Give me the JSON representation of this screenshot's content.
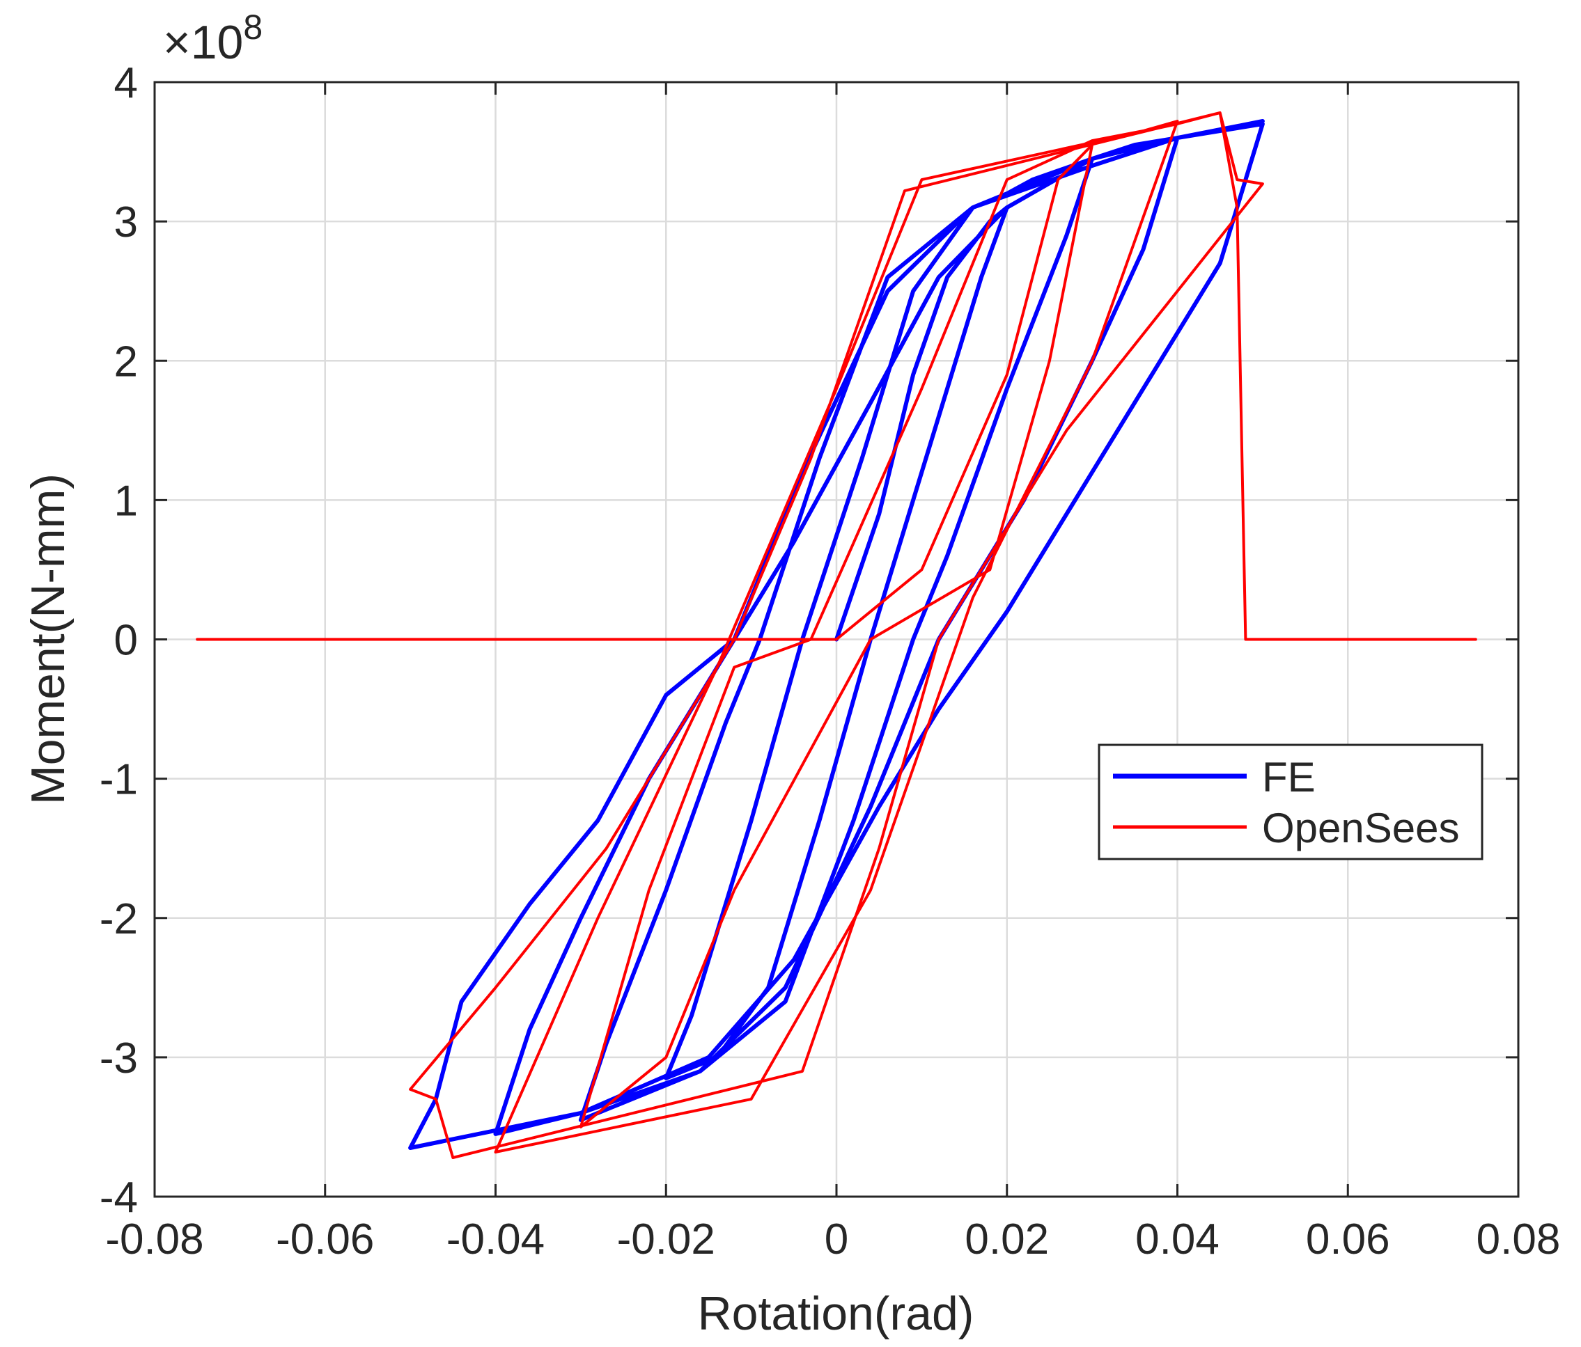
{
  "chart_data": {
    "type": "line",
    "xlabel": "Rotation(rad)",
    "ylabel": "Moment(N-mm)",
    "y_multiplier_label": "×10",
    "y_multiplier_exponent": "8",
    "xlim": [
      -0.08,
      0.08
    ],
    "ylim": [
      -4,
      4
    ],
    "grid": true,
    "legend_position": "right",
    "x_ticks": [
      -0.08,
      -0.06,
      -0.04,
      -0.02,
      0,
      0.02,
      0.04,
      0.06,
      0.08
    ],
    "x_tick_labels": [
      "-0.08",
      "-0.06",
      "-0.04",
      "-0.02",
      "0",
      "0.02",
      "0.04",
      "0.06",
      "0.08"
    ],
    "y_ticks": [
      -4,
      -3,
      -2,
      -1,
      0,
      1,
      2,
      3,
      4
    ],
    "y_tick_labels": [
      "-4",
      "-3",
      "-2",
      "-1",
      "0",
      "1",
      "2",
      "3",
      "4"
    ],
    "series": [
      {
        "name": "FE",
        "color": "#0000ff",
        "points": [
          [
            0,
            0
          ],
          [
            0.005,
            0.9
          ],
          [
            0.009,
            1.9
          ],
          [
            0.013,
            2.6
          ],
          [
            0.018,
            3.0
          ],
          [
            0.02,
            3.1
          ],
          [
            0.017,
            2.6
          ],
          [
            0.01,
            1.2
          ],
          [
            0.004,
            0.0
          ],
          [
            -0.002,
            -1.3
          ],
          [
            -0.008,
            -2.5
          ],
          [
            -0.014,
            -3.0
          ],
          [
            -0.02,
            -3.15
          ],
          [
            -0.017,
            -2.7
          ],
          [
            -0.01,
            -1.3
          ],
          [
            -0.004,
            0.0
          ],
          [
            0.003,
            1.3
          ],
          [
            0.009,
            2.5
          ],
          [
            0.016,
            3.1
          ],
          [
            0.02,
            3.2
          ],
          [
            0.023,
            3.3
          ],
          [
            0.03,
            3.45
          ],
          [
            0.027,
            2.9
          ],
          [
            0.02,
            1.8
          ],
          [
            0.013,
            0.6
          ],
          [
            0.009,
            0.0
          ],
          [
            0.002,
            -1.3
          ],
          [
            -0.006,
            -2.6
          ],
          [
            -0.016,
            -3.1
          ],
          [
            -0.026,
            -3.35
          ],
          [
            -0.03,
            -3.45
          ],
          [
            -0.027,
            -2.9
          ],
          [
            -0.02,
            -1.8
          ],
          [
            -0.013,
            -0.6
          ],
          [
            -0.009,
            0.0
          ],
          [
            -0.002,
            1.3
          ],
          [
            0.006,
            2.6
          ],
          [
            0.016,
            3.1
          ],
          [
            0.026,
            3.35
          ],
          [
            0.03,
            3.45
          ],
          [
            0.035,
            3.55
          ],
          [
            0.04,
            3.6
          ],
          [
            0.036,
            2.8
          ],
          [
            0.03,
            2.0
          ],
          [
            0.022,
            1.0
          ],
          [
            0.012,
            0.0
          ],
          [
            0.004,
            -1.2
          ],
          [
            -0.006,
            -2.5
          ],
          [
            -0.016,
            -3.1
          ],
          [
            -0.03,
            -3.4
          ],
          [
            -0.04,
            -3.55
          ],
          [
            -0.036,
            -2.8
          ],
          [
            -0.03,
            -2.0
          ],
          [
            -0.022,
            -1.0
          ],
          [
            -0.012,
            0.0
          ],
          [
            -0.004,
            1.2
          ],
          [
            0.006,
            2.5
          ],
          [
            0.016,
            3.1
          ],
          [
            0.03,
            3.4
          ],
          [
            0.04,
            3.6
          ],
          [
            0.05,
            3.7
          ],
          [
            0.045,
            2.7
          ],
          [
            0.038,
            2.0
          ],
          [
            0.03,
            1.2
          ],
          [
            0.02,
            0.2
          ],
          [
            0.012,
            -0.5
          ],
          [
            0.005,
            -1.2
          ],
          [
            -0.005,
            -2.3
          ],
          [
            -0.015,
            -3.0
          ],
          [
            -0.03,
            -3.4
          ],
          [
            -0.05,
            -3.65
          ],
          [
            -0.047,
            -3.3
          ],
          [
            -0.044,
            -2.6
          ],
          [
            -0.036,
            -1.9
          ],
          [
            -0.028,
            -1.3
          ],
          [
            -0.02,
            -0.4
          ],
          [
            -0.012,
            0.0
          ],
          [
            -0.005,
            0.7
          ],
          [
            0.004,
            1.7
          ],
          [
            0.012,
            2.6
          ],
          [
            0.02,
            3.1
          ],
          [
            0.03,
            3.45
          ],
          [
            0.04,
            3.6
          ],
          [
            0.05,
            3.72
          ]
        ]
      },
      {
        "name": "OpenSees",
        "color": "#ff0000",
        "points": [
          [
            -0.075,
            0
          ],
          [
            0,
            0
          ],
          [
            0.01,
            0.5
          ],
          [
            0.02,
            1.9
          ],
          [
            0.026,
            3.3
          ],
          [
            0.03,
            3.55
          ],
          [
            0.025,
            2.0
          ],
          [
            0.018,
            0.5
          ],
          [
            0.004,
            0.0
          ],
          [
            -0.012,
            -1.8
          ],
          [
            -0.02,
            -3.0
          ],
          [
            -0.03,
            -3.5
          ],
          [
            -0.022,
            -1.8
          ],
          [
            -0.012,
            -0.2
          ],
          [
            -0.003,
            0.0
          ],
          [
            0.01,
            1.8
          ],
          [
            0.02,
            3.3
          ],
          [
            0.03,
            3.58
          ],
          [
            0.036,
            3.65
          ],
          [
            0.04,
            3.72
          ],
          [
            0.03,
            2.0
          ],
          [
            0.016,
            0.3
          ],
          [
            0.004,
            -1.8
          ],
          [
            -0.01,
            -3.3
          ],
          [
            -0.04,
            -3.68
          ],
          [
            -0.028,
            -2.0
          ],
          [
            -0.014,
            -0.2
          ],
          [
            0.0,
            1.8
          ],
          [
            0.01,
            3.3
          ],
          [
            0.04,
            3.7
          ],
          [
            0.045,
            3.78
          ],
          [
            0.047,
            3.3
          ],
          [
            0.05,
            3.27
          ],
          [
            0.04,
            2.5
          ],
          [
            0.027,
            1.5
          ],
          [
            0.012,
            0.0
          ],
          [
            0.005,
            -1.5
          ],
          [
            -0.004,
            -3.1
          ],
          [
            -0.045,
            -3.72
          ],
          [
            -0.047,
            -3.3
          ],
          [
            -0.05,
            -3.23
          ],
          [
            -0.04,
            -2.5
          ],
          [
            -0.027,
            -1.5
          ],
          [
            -0.012,
            0.0
          ],
          [
            -0.003,
            1.3
          ],
          [
            0.008,
            3.22
          ],
          [
            0.045,
            3.78
          ],
          [
            0.047,
            3.1
          ],
          [
            0.048,
            0
          ],
          [
            0.075,
            0
          ]
        ]
      }
    ]
  }
}
